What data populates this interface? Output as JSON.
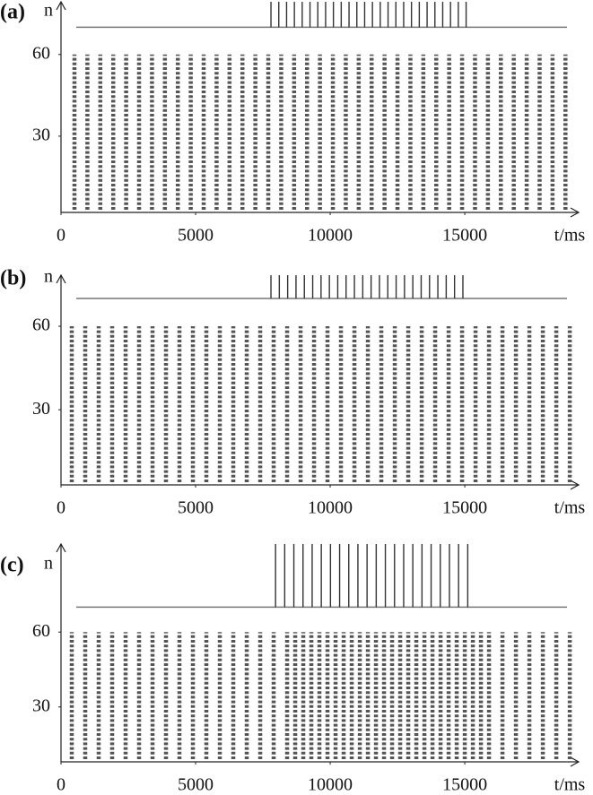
{
  "chart_data": [
    {
      "type": "raster",
      "label": "(a)",
      "ylabel": "n",
      "xlabel": "t/ms",
      "color": "#555555",
      "xlim": [
        0,
        19230
      ],
      "ylim": [
        2,
        80
      ],
      "xticks": [
        0,
        5000,
        10000,
        15000
      ],
      "yticks": [
        30,
        60
      ],
      "stimulus_baseline": 70,
      "stimulus_times": [
        7800,
        8090,
        8380,
        8670,
        8960,
        9250,
        9540,
        9830,
        10120,
        10410,
        10700,
        10990,
        11280,
        11570,
        11860,
        12150,
        12440,
        12730,
        13020,
        13310,
        13600,
        13890,
        14180,
        14470,
        14760,
        15050
      ],
      "burst_times": [
        500,
        980,
        1460,
        1940,
        2420,
        2900,
        3380,
        3860,
        4340,
        4820,
        5300,
        5780,
        6260,
        6740,
        7220,
        7700,
        8180,
        8660,
        9140,
        9620,
        10100,
        10580,
        11060,
        11540,
        12020,
        12500,
        12980,
        13460,
        13940,
        14420,
        14900,
        15380,
        15860,
        16340,
        16820,
        17300,
        17780,
        18260,
        18740
      ]
    },
    {
      "type": "raster",
      "label": "(b)",
      "ylabel": "n",
      "xlabel": "t/ms",
      "color": "#555555",
      "xlim": [
        0,
        19230
      ],
      "ylim": [
        3,
        79
      ],
      "xticks": [
        0,
        5000,
        10000,
        15000
      ],
      "yticks": [
        30,
        60
      ],
      "stimulus_baseline": 70,
      "stimulus_times": [
        7800,
        8110,
        8420,
        8730,
        9040,
        9350,
        9660,
        9970,
        10280,
        10590,
        10900,
        11210,
        11520,
        11830,
        12140,
        12450,
        12760,
        13070,
        13380,
        13690,
        14000,
        14310,
        14620,
        14930
      ],
      "burst_times": [
        400,
        900,
        1400,
        1900,
        2400,
        2900,
        3400,
        3900,
        4400,
        4900,
        5400,
        5900,
        6400,
        6900,
        7400,
        7900,
        8400,
        8900,
        9400,
        9900,
        10400,
        10900,
        11400,
        11900,
        12400,
        12900,
        13400,
        13900,
        14400,
        14900,
        15400,
        15900,
        16400,
        16900,
        17400,
        17900,
        18400,
        18900
      ]
    },
    {
      "type": "raster",
      "label": "(c)",
      "ylabel": "n",
      "xlabel": "t/ms",
      "color": "#555555",
      "xlim": [
        0,
        19230
      ],
      "ylim": [
        8,
        96
      ],
      "xticks": [
        0,
        5000,
        10000,
        15000
      ],
      "yticks": [
        30,
        60
      ],
      "stimulus_baseline": 70,
      "stimulus_times": [
        7970,
        8310,
        8650,
        8990,
        9330,
        9670,
        10010,
        10350,
        10690,
        11030,
        11370,
        11710,
        12050,
        12390,
        12730,
        13070,
        13410,
        13750,
        14090,
        14430,
        14770,
        15110
      ],
      "burst_times": [
        400,
        900,
        1400,
        1900,
        2400,
        2900,
        3400,
        3900,
        4400,
        4900,
        5400,
        5900,
        6400,
        6900,
        7400,
        7900,
        8400,
        8700,
        9000,
        9300,
        9600,
        9900,
        10200,
        10500,
        10800,
        11100,
        11400,
        11700,
        12000,
        12300,
        12600,
        12900,
        13200,
        13500,
        13800,
        14100,
        14400,
        14700,
        15000,
        15300,
        15600,
        15900,
        16400,
        16900,
        17400,
        17900,
        18400,
        18900
      ]
    }
  ]
}
